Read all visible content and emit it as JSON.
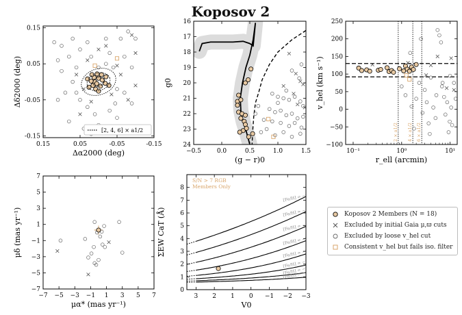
{
  "title": "Koposov 2",
  "colors": {
    "member_fill": "#e8c9a2",
    "iso_orange": "#d9a66b",
    "band": "#dcdcdc",
    "text_gray": "#8a8a8a"
  },
  "legend": [
    {
      "marker": "member",
      "label": "Koposov 2 Members (N = 18)"
    },
    {
      "marker": "cross",
      "label": "Excluded by initial Gaia μ,ϖ cuts"
    },
    {
      "marker": "open-circle",
      "label": "Excluded by loose v_hel cut"
    },
    {
      "marker": "orange-square",
      "label": "Consistent v_hel but fails iso. filter"
    }
  ],
  "chart_data": [
    {
      "id": "sky",
      "type": "scatter",
      "xlabel": "Δα2000 (deg)",
      "ylabel": "Δδ2000 (deg)",
      "xlim": [
        0.15,
        -0.15
      ],
      "ylim": [
        -0.155,
        0.155
      ],
      "xticks": [
        "0.15",
        "0.05",
        "-0.05",
        "-0.15"
      ],
      "xtick_values": [
        0.15,
        0.05,
        -0.05,
        -0.15
      ],
      "yticks": [
        "-0.15",
        "-0.05",
        "0.05",
        "0.15"
      ],
      "ytick_values": [
        -0.15,
        -0.05,
        0.05,
        0.15
      ],
      "legend_label": "[2, 4, 6] × a1/2",
      "ellipses_deg": [
        0.016,
        0.032,
        0.048
      ],
      "members": [
        [
          0.01,
          0.0
        ],
        [
          0.005,
          -0.005
        ],
        [
          0.0,
          0.01
        ],
        [
          -0.005,
          -0.012
        ],
        [
          0.015,
          -0.01
        ],
        [
          -0.01,
          0.005
        ],
        [
          0.012,
          0.012
        ],
        [
          0.02,
          0.002
        ],
        [
          -0.018,
          -0.004
        ],
        [
          0.004,
          0.022
        ],
        [
          -0.008,
          0.02
        ],
        [
          0.026,
          -0.015
        ],
        [
          0.008,
          -0.02
        ],
        [
          -0.02,
          0.014
        ],
        [
          0.0,
          -0.026
        ],
        [
          0.03,
          0.008
        ],
        [
          -0.028,
          -0.01
        ],
        [
          0.018,
          0.02
        ]
      ],
      "excluded_gaia": [
        [
          -0.09,
          0.13
        ],
        [
          -0.1,
          0.08
        ],
        [
          0.03,
          0.06
        ],
        [
          -0.05,
          0.045
        ],
        [
          0.04,
          -0.02
        ],
        [
          -0.035,
          -0.035
        ],
        [
          0.02,
          -0.055
        ],
        [
          -0.06,
          0.02
        ],
        [
          0.06,
          0.02
        ],
        [
          -0.1,
          -0.01
        ],
        [
          0.0,
          0.09
        ],
        [
          0.05,
          -0.09
        ],
        [
          -0.02,
          0.1
        ],
        [
          -0.08,
          -0.05
        ]
      ],
      "excluded_vhel": [
        [
          0.12,
          0.11
        ],
        [
          0.1,
          0.1
        ],
        [
          0.07,
          0.12
        ],
        [
          -0.08,
          0.14
        ],
        [
          0.05,
          0.09
        ],
        [
          0.03,
          0.11
        ],
        [
          -0.02,
          0.12
        ],
        [
          -0.06,
          0.12
        ],
        [
          -0.1,
          0.12
        ],
        [
          0.11,
          0.06
        ],
        [
          0.08,
          0.07
        ],
        [
          0.02,
          0.07
        ],
        [
          -0.03,
          0.08
        ],
        [
          -0.07,
          0.07
        ],
        [
          -0.09,
          0.04
        ],
        [
          0.1,
          0.03
        ],
        [
          0.06,
          0.04
        ],
        [
          0.07,
          0.0
        ],
        [
          0.09,
          -0.03
        ],
        [
          0.11,
          -0.05
        ],
        [
          0.05,
          -0.05
        ],
        [
          -0.05,
          -0.02
        ],
        [
          -0.07,
          -0.03
        ],
        [
          -0.09,
          -0.06
        ],
        [
          0.03,
          -0.07
        ],
        [
          0.01,
          -0.09
        ],
        [
          -0.03,
          -0.08
        ],
        [
          -0.05,
          -0.1
        ],
        [
          0.08,
          -0.11
        ],
        [
          0.04,
          -0.13
        ],
        [
          0.0,
          -0.12
        ],
        [
          -0.08,
          -0.13
        ],
        [
          0.02,
          -0.145
        ],
        [
          -0.04,
          0.04
        ],
        [
          -0.02,
          0.05
        ],
        [
          0.0,
          0.04
        ],
        [
          -0.045,
          -0.06
        ],
        [
          0.06,
          -0.03
        ]
      ],
      "fails_iso": [
        [
          -0.05,
          0.065
        ],
        [
          0.01,
          0.045
        ]
      ]
    },
    {
      "id": "cmd",
      "type": "scatter",
      "xlabel": "(g − r)0",
      "ylabel": "g0",
      "xlim": [
        -0.5,
        1.5
      ],
      "ylim": [
        24,
        16
      ],
      "xticks": [
        "−0.5",
        "0.0",
        "0.5",
        "1.0",
        "1.5"
      ],
      "xtick_values": [
        -0.5,
        0,
        0.5,
        1.0,
        1.5
      ],
      "yticks": [
        "16",
        "17",
        "18",
        "19",
        "20",
        "21",
        "22",
        "23",
        "24"
      ],
      "ytick_values": [
        16,
        17,
        18,
        19,
        20,
        21,
        22,
        23,
        24
      ],
      "isochrone": [
        [
          -0.4,
          17.95
        ],
        [
          -0.35,
          17.45
        ],
        [
          -0.2,
          17.35
        ],
        [
          0.2,
          17.35
        ],
        [
          0.38,
          17.3
        ],
        [
          0.5,
          17.45
        ],
        [
          0.56,
          17.6
        ],
        [
          0.6,
          16.1
        ]
      ],
      "isochrone_lower": [
        [
          0.6,
          16.1
        ],
        [
          0.56,
          17.2
        ],
        [
          0.5,
          18.2
        ],
        [
          0.43,
          19.0
        ],
        [
          0.37,
          20.0
        ],
        [
          0.33,
          21.0
        ],
        [
          0.34,
          21.8
        ],
        [
          0.38,
          22.5
        ],
        [
          0.44,
          23.2
        ],
        [
          0.5,
          24.0
        ]
      ],
      "isochrone_dashed": [
        [
          1.5,
          16.6
        ],
        [
          1.25,
          17.2
        ],
        [
          1.0,
          18.0
        ],
        [
          0.85,
          18.8
        ],
        [
          0.72,
          19.8
        ],
        [
          0.66,
          20.6
        ],
        [
          0.6,
          21.3
        ],
        [
          0.57,
          22.2
        ],
        [
          0.55,
          23.2
        ],
        [
          0.54,
          24.0
        ]
      ],
      "members": [
        [
          0.52,
          19.1
        ],
        [
          0.47,
          19.8
        ],
        [
          0.42,
          20.0
        ],
        [
          0.3,
          20.8
        ],
        [
          0.28,
          21.2
        ],
        [
          0.28,
          21.45
        ],
        [
          0.34,
          21.1
        ],
        [
          0.3,
          21.9
        ],
        [
          0.36,
          22.0
        ],
        [
          0.42,
          22.1
        ],
        [
          0.34,
          22.3
        ],
        [
          0.4,
          22.5
        ],
        [
          0.42,
          22.7
        ],
        [
          0.44,
          22.95
        ],
        [
          0.38,
          23.1
        ],
        [
          0.48,
          23.5
        ],
        [
          0.32,
          23.2
        ],
        [
          0.55,
          23.3
        ]
      ],
      "excluded_gaia": [
        [
          1.2,
          18.1
        ],
        [
          1.32,
          19.4
        ],
        [
          1.4,
          19.9
        ],
        [
          1.1,
          20.2
        ],
        [
          1.28,
          20.7
        ],
        [
          1.45,
          20.1
        ],
        [
          1.35,
          21.4
        ],
        [
          1.48,
          21.6
        ]
      ],
      "excluded_vhel": [
        [
          0.9,
          20.7
        ],
        [
          1.0,
          20.9
        ],
        [
          1.1,
          21.0
        ],
        [
          1.2,
          21.1
        ],
        [
          1.3,
          20.9
        ],
        [
          1.4,
          21.2
        ],
        [
          1.45,
          21.5
        ],
        [
          0.85,
          21.7
        ],
        [
          0.95,
          21.9
        ],
        [
          1.05,
          21.8
        ],
        [
          1.15,
          22.1
        ],
        [
          1.25,
          22.0
        ],
        [
          1.35,
          22.3
        ],
        [
          1.45,
          22.2
        ],
        [
          0.75,
          22.4
        ],
        [
          0.9,
          22.5
        ],
        [
          1.05,
          22.6
        ],
        [
          1.2,
          22.8
        ],
        [
          1.3,
          22.6
        ],
        [
          1.42,
          22.9
        ],
        [
          0.7,
          23.2
        ],
        [
          0.8,
          23.0
        ],
        [
          0.95,
          23.4
        ],
        [
          1.1,
          23.2
        ],
        [
          1.25,
          23.5
        ],
        [
          1.4,
          23.3
        ],
        [
          0.6,
          22.0
        ],
        [
          0.65,
          21.5
        ],
        [
          1.0,
          21.3
        ],
        [
          1.38,
          19.7
        ],
        [
          1.42,
          18.8
        ],
        [
          1.25,
          19.2
        ],
        [
          1.15,
          20.5
        ]
      ],
      "fails_iso": [
        [
          0.83,
          22.35
        ],
        [
          0.92,
          23.5
        ]
      ]
    },
    {
      "id": "rv",
      "type": "scatter",
      "xlabel": "r_ell (arcmin)",
      "ylabel": "v_hel (km s⁻¹)",
      "xscale": "log",
      "xlim": [
        0.07,
        14
      ],
      "ylim": [
        -100,
        250
      ],
      "xticks": [
        "10⁻¹",
        "10⁰",
        "10¹"
      ],
      "xtick_values": [
        0.1,
        1,
        10
      ],
      "yticks": [
        "−100",
        "−50",
        "0",
        "50",
        "100",
        "150",
        "200",
        "250"
      ],
      "ytick_values": [
        -100,
        -50,
        0,
        50,
        100,
        150,
        200,
        250
      ],
      "hlines_dashed": [
        130,
        92
      ],
      "vlines_dotted": [
        0.85,
        1.7,
        2.6
      ],
      "vline_labels": [
        "2 × a1/2",
        "4 × a1/2",
        "6 × a1/2"
      ],
      "members": [
        [
          0.13,
          117
        ],
        [
          0.15,
          110
        ],
        [
          0.19,
          112
        ],
        [
          0.22,
          108
        ],
        [
          0.33,
          111
        ],
        [
          0.37,
          113
        ],
        [
          0.55,
          107
        ],
        [
          0.62,
          110
        ],
        [
          0.68,
          105
        ],
        [
          0.9,
          115
        ],
        [
          1.2,
          123
        ],
        [
          1.3,
          114
        ],
        [
          1.45,
          108
        ],
        [
          1.6,
          120
        ],
        [
          1.75,
          113
        ],
        [
          2.0,
          127
        ],
        [
          1.1,
          109
        ],
        [
          0.5,
          118
        ]
      ],
      "excluded_gaia": [
        [
          0.25,
          127
        ],
        [
          1.35,
          132
        ],
        [
          3.2,
          97
        ],
        [
          4.0,
          125
        ],
        [
          5.5,
          150
        ],
        [
          8.5,
          60
        ],
        [
          10.5,
          145
        ],
        [
          12.0,
          55
        ]
      ],
      "excluded_vhel": [
        [
          1.0,
          65
        ],
        [
          1.2,
          40
        ],
        [
          1.6,
          8
        ],
        [
          1.8,
          -55
        ],
        [
          2.0,
          30
        ],
        [
          2.3,
          75
        ],
        [
          2.7,
          -10
        ],
        [
          3.0,
          55
        ],
        [
          3.3,
          20
        ],
        [
          3.6,
          -40
        ],
        [
          4.0,
          90
        ],
        [
          4.5,
          5
        ],
        [
          5.0,
          -25
        ],
        [
          5.5,
          225
        ],
        [
          6.0,
          210
        ],
        [
          6.5,
          190
        ],
        [
          7.0,
          75
        ],
        [
          7.5,
          35
        ],
        [
          8.0,
          -15
        ],
        [
          8.7,
          20
        ],
        [
          9.3,
          -65
        ],
        [
          10.0,
          95
        ],
        [
          10.5,
          5
        ],
        [
          11.0,
          -45
        ],
        [
          12.0,
          75
        ],
        [
          13.0,
          30
        ],
        [
          2.5,
          200
        ],
        [
          1.5,
          160
        ],
        [
          6.8,
          65
        ],
        [
          5.2,
          40
        ],
        [
          3.8,
          -70
        ],
        [
          9.8,
          -35
        ]
      ],
      "fails_iso": [
        [
          1.45,
          85
        ],
        [
          1.25,
          96
        ]
      ]
    },
    {
      "id": "pm",
      "type": "scatter",
      "xlabel": "μα* (mas yr⁻¹)",
      "ylabel": "μδ (mas yr⁻¹)",
      "xlim": [
        -7,
        7
      ],
      "ylim": [
        -7,
        7
      ],
      "xticks": [
        "−7",
        "−5",
        "−3",
        "−1",
        "1",
        "3",
        "5",
        "7"
      ],
      "xtick_values": [
        -7,
        -5,
        -3,
        -1,
        1,
        3,
        5,
        7
      ],
      "yticks": [
        "−7",
        "−5",
        "−3",
        "−1",
        "1",
        "3",
        "5",
        "7"
      ],
      "ytick_values": [
        -7,
        -5,
        -3,
        -1,
        1,
        3,
        5,
        7
      ],
      "members": [
        [
          0.0,
          0.3
        ]
      ],
      "excluded_gaia": [
        [
          -5.2,
          -2.3
        ],
        [
          -1.3,
          -5.2
        ],
        [
          1.3,
          -1.2
        ]
      ],
      "excluded_vhel": [
        [
          -4.8,
          -1.0
        ],
        [
          -1.7,
          -0.8
        ],
        [
          -1.3,
          -3.1
        ],
        [
          -0.9,
          -2.6
        ],
        [
          -0.5,
          1.3
        ],
        [
          -0.2,
          0.0
        ],
        [
          0.2,
          -0.5
        ],
        [
          0.4,
          0.1
        ],
        [
          0.5,
          -1.5
        ],
        [
          0.8,
          -1.8
        ],
        [
          0.0,
          -3.4
        ],
        [
          -0.3,
          -4.0
        ],
        [
          -0.5,
          -3.8
        ],
        [
          2.6,
          1.3
        ],
        [
          3.0,
          -2.5
        ],
        [
          -0.6,
          -1.8
        ],
        [
          0.7,
          0.8
        ]
      ],
      "fails_iso": []
    },
    {
      "id": "cat",
      "type": "line",
      "xlabel": "V0",
      "ylabel": "ΣEW CaT (Å)",
      "xlim": [
        3.5,
        -3
      ],
      "ylim": [
        0,
        9
      ],
      "xticks": [
        "3",
        "2",
        "1",
        "0",
        "−1",
        "−2",
        "−3"
      ],
      "xtick_values": [
        3,
        2,
        1,
        0,
        -1,
        -2,
        -3
      ],
      "yticks": [
        "0",
        "1",
        "2",
        "3",
        "4",
        "5",
        "6",
        "7",
        "8"
      ],
      "ytick_values": [
        0,
        1,
        2,
        3,
        4,
        5,
        6,
        7,
        8
      ],
      "annotation_lines": [
        "S/N > 7 RGB",
        "Members Only"
      ],
      "metallicities": [
        -0.5,
        -1.0,
        -1.5,
        -2.0,
        -2.5,
        -3.0,
        -3.5,
        -4.0
      ],
      "metallicity_labels": [
        "[Fe/H] = −0.5",
        "[Fe/H] = −1.0",
        "[Fe/H] = −1.5",
        "[Fe/H] = −2.0",
        "[Fe/H] = −2.5",
        "[Fe/H] = −3.0",
        "[Fe/H] = −3.5",
        "[Fe/H] = −4.0"
      ],
      "calibration": {
        "a": -2.87,
        "b": 0.195,
        "c": 0.458,
        "d": -0.913,
        "e": 0.0155
      },
      "members": [
        [
          1.78,
          1.65
        ]
      ]
    }
  ]
}
